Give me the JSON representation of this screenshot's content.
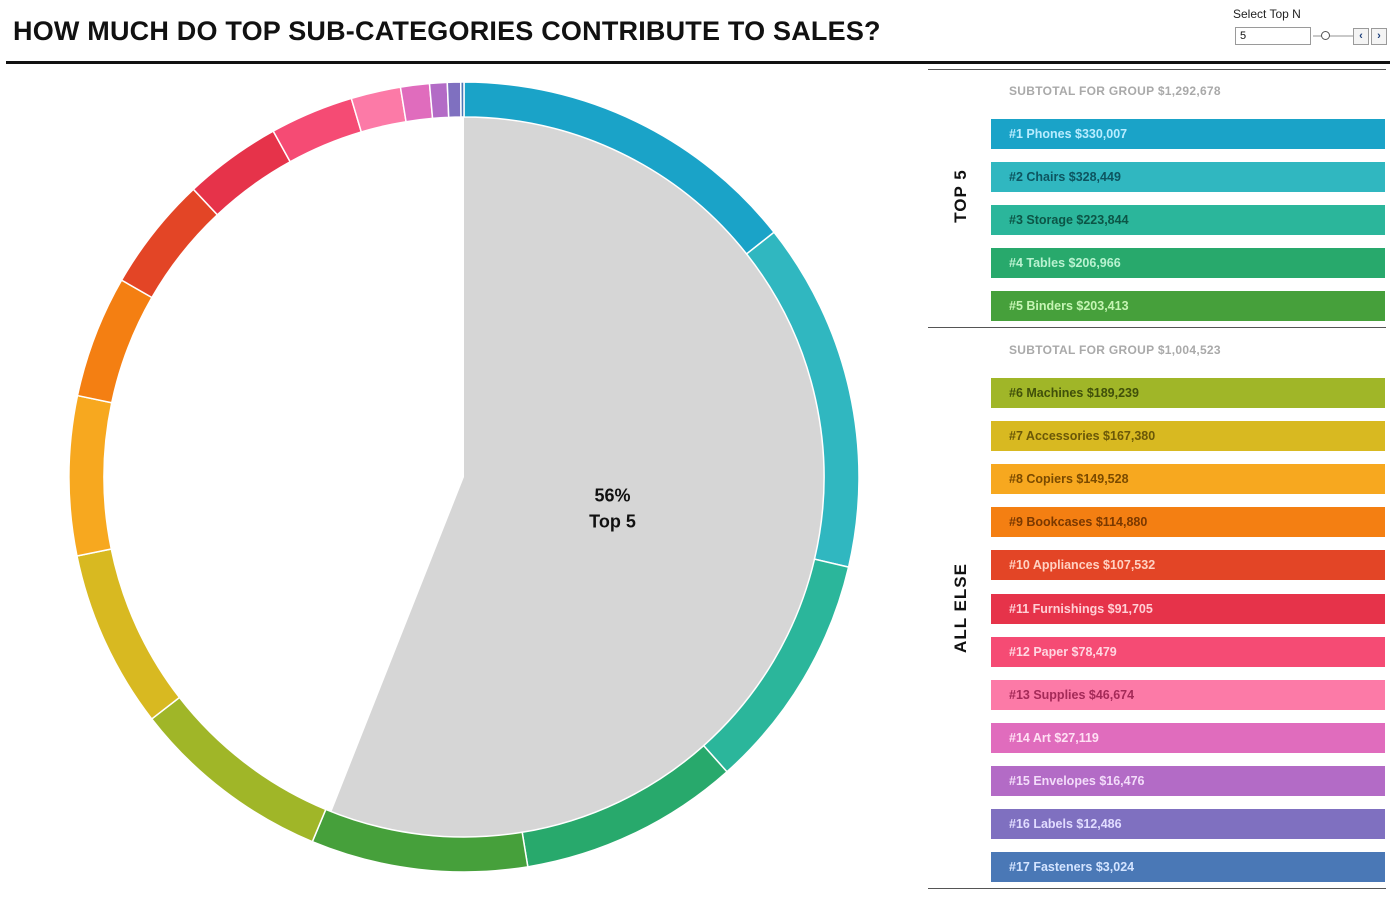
{
  "title": "HOW MUCH DO TOP SUB-CATEGORIES CONTRIBUTE TO SALES?",
  "control": {
    "label": "Select Top N",
    "value": "5",
    "prev_icon": "chevron-left-icon",
    "next_icon": "chevron-right-icon",
    "prev_glyph": "‹",
    "next_glyph": "›"
  },
  "center_label": {
    "percent": "56%",
    "group": "Top 5"
  },
  "groups": [
    {
      "label": "TOP 5",
      "subtotal": "SUBTOTAL FOR GROUP $1,292,678"
    },
    {
      "label": "ALL ELSE",
      "subtotal": "SUBTOTAL FOR GROUP $1,004,523"
    }
  ],
  "chart_data": {
    "type": "pie",
    "top_n": 5,
    "highlight": {
      "label": "Top 5",
      "percent": 56,
      "color": "#d6d6d6"
    },
    "categories": [
      {
        "rank": 1,
        "name": "Phones",
        "value": 330007,
        "label": "#1 Phones $330,007",
        "color": "#1aa3c8",
        "text_color": "#b8ecff"
      },
      {
        "rank": 2,
        "name": "Chairs",
        "value": 328449,
        "label": "#2 Chairs $328,449",
        "color": "#30b7c0",
        "text_color": "#0d5560"
      },
      {
        "rank": 3,
        "name": "Storage",
        "value": 223844,
        "label": "#3 Storage $223,844",
        "color": "#2bb69b",
        "text_color": "#0c5546"
      },
      {
        "rank": 4,
        "name": "Tables",
        "value": 206966,
        "label": "#4 Tables $206,966",
        "color": "#28a96c",
        "text_color": "#b9f2d0"
      },
      {
        "rank": 5,
        "name": "Binders",
        "value": 203413,
        "label": "#5 Binders $203,413",
        "color": "#46a03b",
        "text_color": "#c6f5b4"
      },
      {
        "rank": 6,
        "name": "Machines",
        "value": 189239,
        "label": "#6 Machines $189,239",
        "color": "#a0b628",
        "text_color": "#40500a"
      },
      {
        "rank": 7,
        "name": "Accessories",
        "value": 167380,
        "label": "#7 Accessories $167,380",
        "color": "#d8b921",
        "text_color": "#6b5808"
      },
      {
        "rank": 8,
        "name": "Copiers",
        "value": 149528,
        "label": "#8 Copiers $149,528",
        "color": "#f7a81f",
        "text_color": "#7a4a00"
      },
      {
        "rank": 9,
        "name": "Bookcases",
        "value": 114880,
        "label": "#9 Bookcases $114,880",
        "color": "#f47f12",
        "text_color": "#7a3800"
      },
      {
        "rank": 10,
        "name": "Appliances",
        "value": 107532,
        "label": "#10 Appliances $107,532",
        "color": "#e34526",
        "text_color": "#ffd1c2"
      },
      {
        "rank": 11,
        "name": "Furnishings",
        "value": 91705,
        "label": "#11 Furnishings $91,705",
        "color": "#e6334a",
        "text_color": "#ffd0d6"
      },
      {
        "rank": 12,
        "name": "Paper",
        "value": 78479,
        "label": "#12 Paper $78,479",
        "color": "#f54b74",
        "text_color": "#ffd6e1"
      },
      {
        "rank": 13,
        "name": "Supplies",
        "value": 46674,
        "label": "#13 Supplies $46,674",
        "color": "#fc7aa7",
        "text_color": "#a42a58"
      },
      {
        "rank": 14,
        "name": "Art",
        "value": 27119,
        "label": "#14 Art $27,119",
        "color": "#e06cbd",
        "text_color": "#ffe0f4"
      },
      {
        "rank": 15,
        "name": "Envelopes",
        "value": 16476,
        "label": "#15 Envelopes $16,476",
        "color": "#b36bc6",
        "text_color": "#f3dcfa"
      },
      {
        "rank": 16,
        "name": "Labels",
        "value": 12486,
        "label": "#16 Labels $12,486",
        "color": "#7f70c0",
        "text_color": "#e1dcff"
      },
      {
        "rank": 17,
        "name": "Fasteners",
        "value": 3024,
        "label": "#17 Fasteners $3,024",
        "color": "#4a78b6",
        "text_color": "#d4e4ff"
      }
    ]
  }
}
